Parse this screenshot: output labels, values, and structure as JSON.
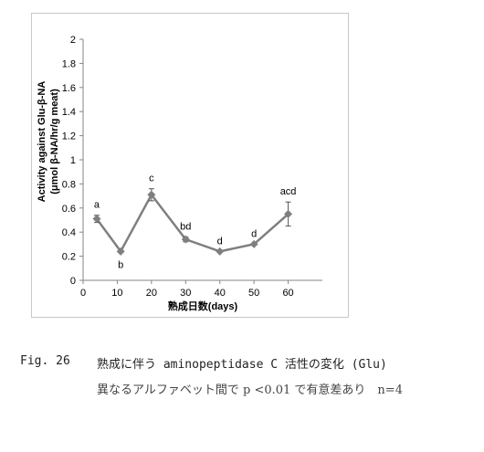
{
  "chart_data": {
    "type": "line",
    "x": [
      4,
      11,
      20,
      30,
      40,
      50,
      60
    ],
    "series": [
      {
        "values": [
          0.51,
          0.24,
          0.71,
          0.34,
          0.24,
          0.3,
          0.55
        ],
        "errors": [
          0.03,
          0.0,
          0.05,
          0.02,
          0.0,
          0.0,
          0.1
        ],
        "color": "#7f7f7f",
        "marker": "diamond"
      }
    ],
    "point_labels": [
      "a",
      "b",
      "c",
      "bd",
      "d",
      "d",
      "acd"
    ],
    "xlabel": "熟成日数(days)",
    "ylabel_line1": "Activity against Glu-β-NA",
    "ylabel_line2": "(μmol β-NA/hr/g meat)",
    "xlim": [
      0,
      70
    ],
    "ylim": [
      0,
      2
    ],
    "xticks": [
      "0",
      "10",
      "20",
      "30",
      "40",
      "50",
      "60"
    ],
    "yticks": [
      "0",
      "0.2",
      "0.4",
      "0.6",
      "0.8",
      "1",
      "1.2",
      "1.4",
      "1.6",
      "1.8",
      "2"
    ],
    "grid": false,
    "legend": "none"
  },
  "caption": {
    "fig_number": "Fig. 26",
    "title": "熟成に伴う aminopeptidase C 活性の変化 (Glu)",
    "note": "異なるアルファベット間で p <0.01 で有意差あり　n=4"
  }
}
